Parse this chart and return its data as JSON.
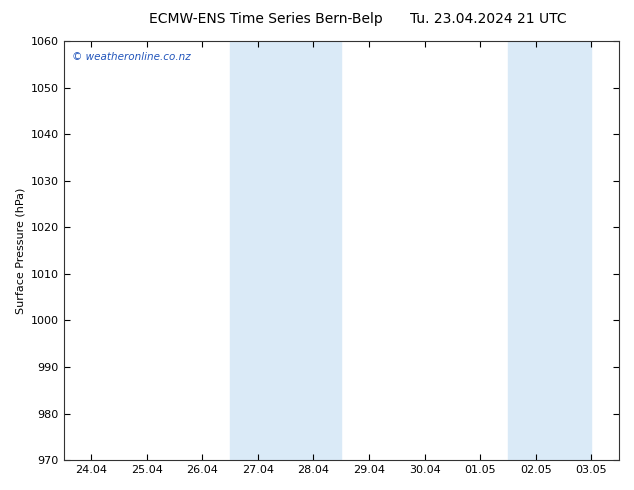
{
  "title_left": "ECMW-ENS Time Series Bern-Belp",
  "title_right": "Tu. 23.04.2024 21 UTC",
  "ylabel": "Surface Pressure (hPa)",
  "ylim": [
    970,
    1060
  ],
  "yticks": [
    970,
    980,
    990,
    1000,
    1010,
    1020,
    1030,
    1040,
    1050,
    1060
  ],
  "xtick_labels": [
    "24.04",
    "25.04",
    "26.04",
    "27.04",
    "28.04",
    "29.04",
    "30.04",
    "01.05",
    "02.05",
    "03.05"
  ],
  "xtick_positions": [
    0,
    1,
    2,
    3,
    4,
    5,
    6,
    7,
    8,
    9
  ],
  "xlim": [
    -0.5,
    9.5
  ],
  "shaded_bands": [
    {
      "x_start": 2.5,
      "x_end": 4.5,
      "color": "#daeaf7"
    },
    {
      "x_start": 7.5,
      "x_end": 9.0,
      "color": "#daeaf7"
    }
  ],
  "watermark_text": "© weatheronline.co.nz",
  "watermark_color": "#2255bb",
  "background_color": "#ffffff",
  "plot_background": "#ffffff",
  "title_fontsize": 10,
  "label_fontsize": 8,
  "tick_fontsize": 8,
  "spine_color": "#333333"
}
